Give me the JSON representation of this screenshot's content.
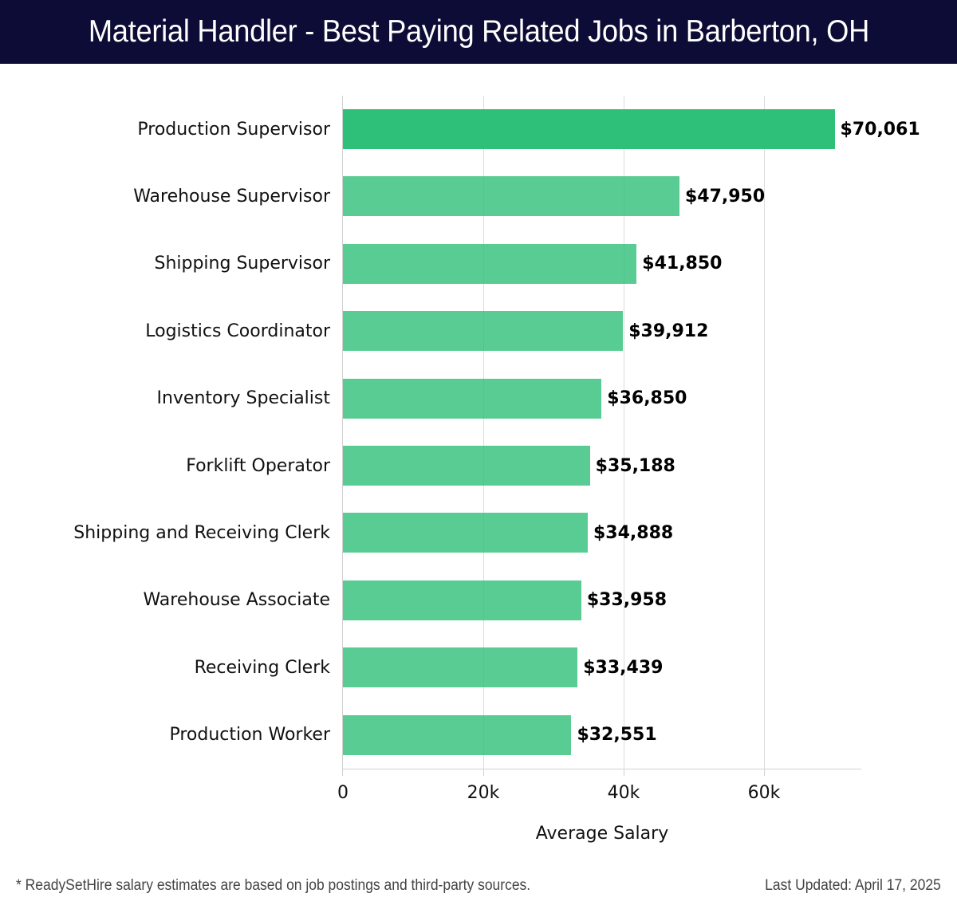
{
  "header": {
    "title": "Material Handler - Best Paying Related Jobs in Barberton, OH"
  },
  "colors": {
    "header_bg": "#0c0c36",
    "bar_highlight": "#2ebf78",
    "bar_default": "#58cc96"
  },
  "chart_data": {
    "type": "bar",
    "orientation": "horizontal",
    "title": "Material Handler - Best Paying Related Jobs in Barberton, OH",
    "xlabel": "Average Salary",
    "ylabel": "",
    "xlim": [
      0,
      73800
    ],
    "grid": true,
    "x_ticks": [
      0,
      20000,
      40000,
      60000
    ],
    "x_tick_labels": [
      "0",
      "20k",
      "40k",
      "60k"
    ],
    "categories": [
      "Production Supervisor",
      "Warehouse Supervisor",
      "Shipping Supervisor",
      "Logistics Coordinator",
      "Inventory Specialist",
      "Forklift Operator",
      "Shipping and Receiving Clerk",
      "Warehouse Associate",
      "Receiving Clerk",
      "Production Worker"
    ],
    "values": [
      70061,
      47950,
      41850,
      39912,
      36850,
      35188,
      34888,
      33958,
      33439,
      32551
    ],
    "value_labels": [
      "$70,061",
      "$47,950",
      "$41,850",
      "$39,912",
      "$36,850",
      "$35,188",
      "$34,888",
      "$33,958",
      "$33,439",
      "$32,551"
    ]
  },
  "footer": {
    "note": "* ReadySetHire salary estimates are based on job postings and third-party sources.",
    "updated": "Last Updated: April 17, 2025"
  }
}
